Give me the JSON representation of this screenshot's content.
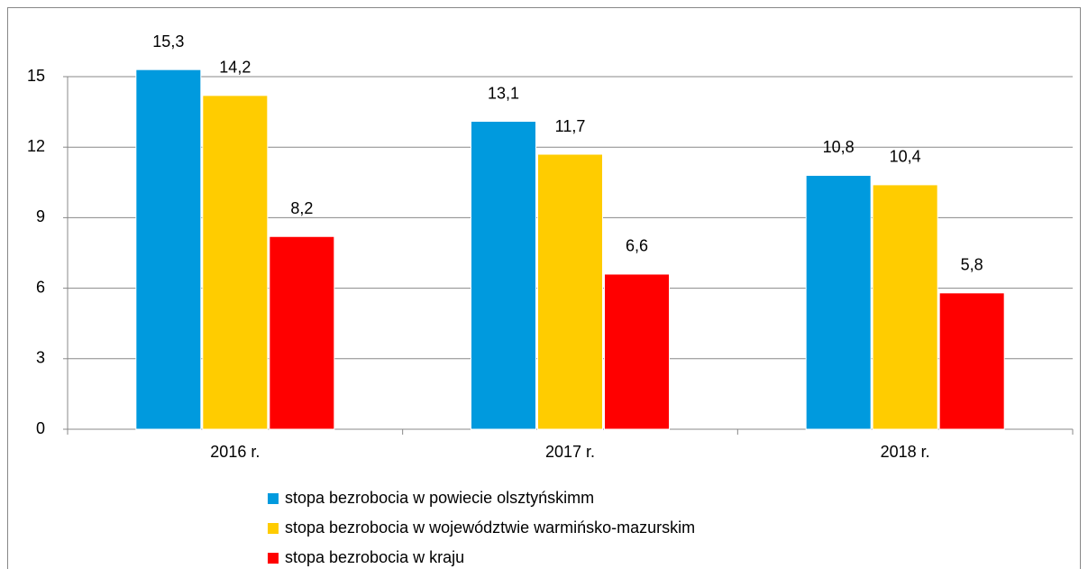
{
  "chart_data": {
    "type": "bar",
    "categories": [
      "2016 r.",
      "2017 r.",
      "2018 r."
    ],
    "series": [
      {
        "name": "stopa bezrobocia w powiecie olsztyńskimm",
        "color": "#009ADE",
        "values": [
          15.3,
          13.1,
          10.8
        ],
        "value_labels": [
          "15,3",
          "13,1",
          "10,8"
        ]
      },
      {
        "name": "stopa bezrobocia w województwie warmińsko-mazurskim",
        "color": "#FFCC00",
        "values": [
          14.2,
          11.7,
          10.4
        ],
        "value_labels": [
          "14,2",
          "11,7",
          "10,4"
        ]
      },
      {
        "name": "stopa bezrobocia w kraju",
        "color": "#FF0000",
        "values": [
          8.2,
          6.6,
          5.8
        ],
        "value_labels": [
          "8,2",
          "6,6",
          "5,8"
        ]
      }
    ],
    "ylim": [
      0,
      15
    ],
    "yticks": [
      0,
      3,
      6,
      9,
      12,
      15
    ],
    "grid": true,
    "legend": "bottom"
  }
}
